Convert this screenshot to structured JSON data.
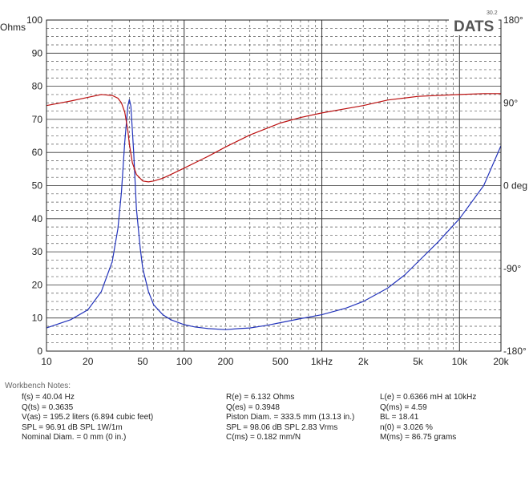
{
  "chart_data": {
    "type": "line",
    "brand": "DATS",
    "version": "30.2",
    "x_scale": "log",
    "x_range": [
      10,
      20000
    ],
    "x_ticks": [
      10,
      20,
      50,
      100,
      200,
      500,
      1000,
      2000,
      5000,
      10000,
      20000
    ],
    "x_tick_labels": [
      "10",
      "20",
      "50",
      "100",
      "200",
      "500",
      "1kHz",
      "2k",
      "5k",
      "10k",
      "20k"
    ],
    "y_range": [
      0,
      100
    ],
    "y_ticks": [
      "0",
      "10",
      "20",
      "30",
      "40",
      "50",
      "60",
      "70",
      "80",
      "90",
      "100"
    ],
    "ylabel_left": "Ohms",
    "y2_range": [
      -180,
      180
    ],
    "y2_ticks": [
      "180°",
      "90°",
      "0 deg",
      "-90°",
      "-180°"
    ],
    "grid": true,
    "series": [
      {
        "color": "#2233bb",
        "x": [
          10,
          15,
          20,
          25,
          30,
          33,
          35,
          37,
          39,
          40,
          41,
          43,
          45,
          48,
          50,
          55,
          60,
          70,
          80,
          100,
          120,
          150,
          200,
          250,
          300,
          400,
          500,
          700,
          1000,
          1500,
          2000,
          3000,
          4000,
          5000,
          7000,
          10000,
          15000,
          20000
        ],
        "y": [
          7,
          9.5,
          12.5,
          18,
          27,
          37,
          48,
          63,
          74,
          76,
          74,
          60,
          43,
          31,
          25,
          18,
          14,
          11,
          9.5,
          8,
          7.3,
          6.8,
          6.5,
          6.8,
          7,
          7.8,
          8.6,
          9.8,
          11,
          13,
          15,
          19,
          23,
          27,
          33,
          40,
          50,
          62
        ]
      },
      {
        "color": "#bb1111",
        "y_units": "degrees",
        "x": [
          10,
          15,
          20,
          25,
          30,
          33,
          35,
          37,
          39,
          40,
          42,
          45,
          50,
          55,
          60,
          70,
          80,
          100,
          150,
          200,
          300,
          500,
          700,
          1000,
          2000,
          3000,
          5000,
          10000,
          15000,
          20000
        ],
        "y": [
          87,
          92,
          96,
          99,
          98,
          95,
          90,
          80,
          60,
          45,
          25,
          12,
          5,
          4,
          5,
          8,
          12,
          19,
          32,
          42,
          55,
          68,
          74,
          79,
          87,
          93,
          97,
          99,
          100,
          100
        ]
      }
    ]
  },
  "notes": {
    "header": "Workbench Notes:",
    "col1": [
      "f(s) = 40.04 Hz",
      "Q(ts) = 0.3635",
      "V(as) = 195.2 liters  (6.894 cubic feet)",
      "SPL = 96.91 dB SPL 1W/1m",
      "Nominal Diam. = 0 mm (0 in.)"
    ],
    "col2": [
      "R(e) = 6.132 Ohms",
      "Q(es) = 0.3948",
      "Piston Diam. = 333.5 mm (13.13 in.)",
      "SPL = 98.06 dB SPL 2.83 Vrms",
      "C(ms) = 0.182 mm/N"
    ],
    "col3": [
      "L(e) = 0.6366 mH at 10kHz",
      "Q(ms) = 4.59",
      "BL = 18.41",
      "n(0) = 3.026 %",
      "M(ms) = 86.75 grams"
    ]
  }
}
